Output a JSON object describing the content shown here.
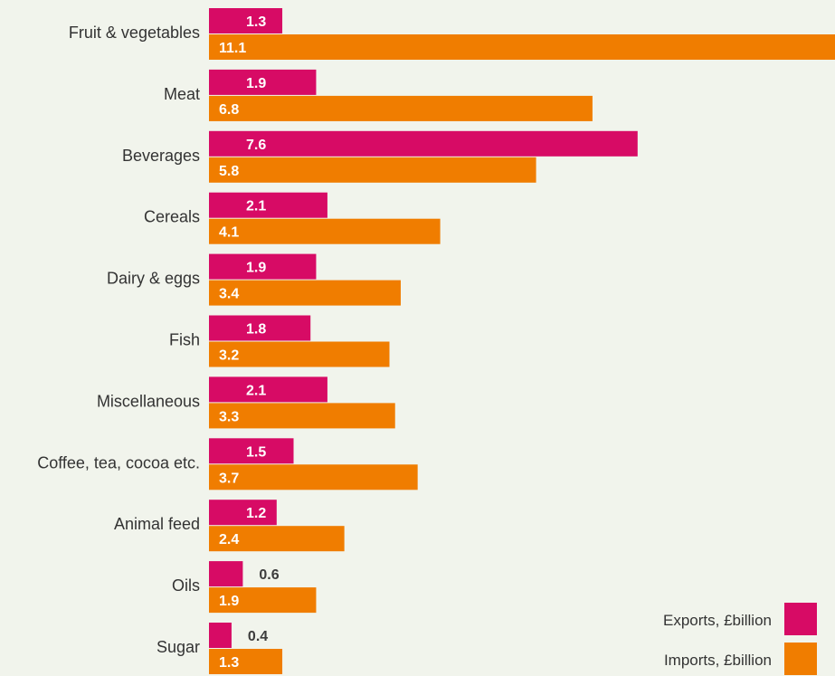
{
  "chart_data": {
    "type": "bar",
    "orientation": "horizontal",
    "categories": [
      "Fruit & vegetables",
      "Meat",
      "Beverages",
      "Cereals",
      "Dairy & eggs",
      "Fish",
      "Miscellaneous",
      "Coffee, tea, cocoa etc.",
      "Animal feed",
      "Oils",
      "Sugar"
    ],
    "series": [
      {
        "name": "Exports, £billion",
        "color": "#d70b65",
        "values": [
          1.3,
          1.9,
          7.6,
          2.1,
          1.9,
          1.8,
          2.1,
          1.5,
          1.2,
          0.6,
          0.4
        ],
        "labels": [
          "1.3",
          "1.9",
          "7.6",
          "2.1",
          "1.9",
          "1.8",
          "2.1",
          "1.5",
          "1.2",
          "0.6",
          "0.4"
        ]
      },
      {
        "name": "Imports, £billion",
        "color": "#f07d00",
        "values": [
          11.1,
          6.8,
          5.8,
          4.1,
          3.4,
          3.2,
          3.3,
          3.7,
          2.4,
          1.9,
          1.3
        ],
        "labels": [
          "11.1",
          "6.8",
          "5.8",
          "4.1",
          "3.4",
          "3.2",
          "3.3",
          "3.7",
          "2.4",
          "1.9",
          "1.3"
        ]
      }
    ],
    "xlim": [
      0,
      11.1
    ],
    "grid": false,
    "legend_position": "bottom-right"
  }
}
